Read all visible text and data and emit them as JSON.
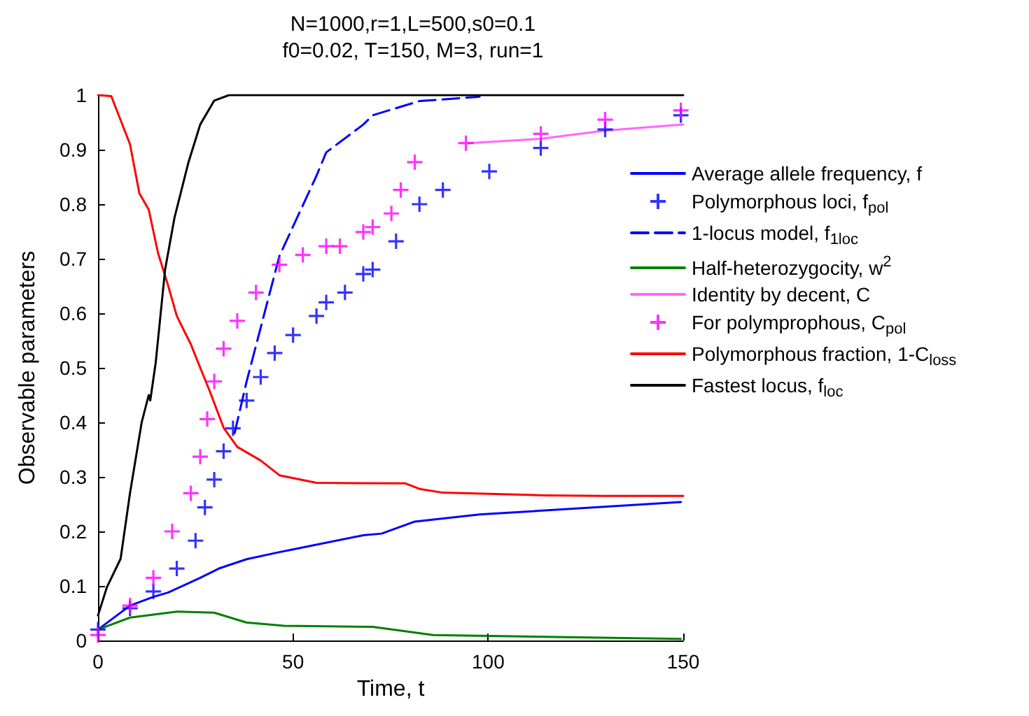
{
  "chart_data": {
    "type": "line",
    "title": "N=1000,r=1,L=500,s0=0.1",
    "subtitle": "f0=0.02, T=150, M=3, run=1",
    "xlabel": "Time, t",
    "ylabel": "Observable parameters",
    "xlim": [
      0,
      150
    ],
    "xticks": [
      0,
      50,
      100,
      150
    ],
    "ylim": [
      0,
      1
    ],
    "yticks": [
      0,
      0.1,
      0.2,
      0.3,
      0.4,
      0.5,
      0.6,
      0.7,
      0.8,
      0.9,
      1
    ],
    "grid": false,
    "legend": "right",
    "series": [
      {
        "name": "Average allele frequency, f",
        "color": "#0000ff",
        "x": [
          0,
          8.2,
          14.2,
          18,
          26.2,
          31,
          38.1,
          46.5,
          50,
          68,
          72.7,
          81.2,
          97.8,
          149.4
        ],
        "values": [
          0.02,
          0.064,
          0.08,
          0.088,
          0.115,
          0.132,
          0.149,
          0.162,
          0.167,
          0.193,
          0.196,
          0.218,
          0.231,
          0.254
        ]
      },
      {
        "name": "Polymorphous loci, f$_{pol}$",
        "type": "scatter",
        "marker": "cross",
        "color": "#0000ff",
        "x": [
          0,
          8.2,
          14.2,
          20.2,
          25,
          27.4,
          29.8,
          32.2,
          34.6,
          38.1,
          41.7,
          45.3,
          50,
          56,
          58.5,
          63.3,
          68,
          70.4,
          76.4,
          82.4,
          88.4,
          100.3,
          113.5,
          130,
          149.4
        ],
        "values": [
          0.02,
          0.059,
          0.09,
          0.132,
          0.183,
          0.244,
          0.295,
          0.347,
          0.389,
          0.44,
          0.483,
          0.527,
          0.56,
          0.595,
          0.62,
          0.638,
          0.672,
          0.68,
          0.732,
          0.8,
          0.826,
          0.86,
          0.903,
          0.937,
          0.963
        ]
      },
      {
        "name": "1-locus model, f$_{1loc}$",
        "line_style": "dashed",
        "color": "#0000ff",
        "x": [
          35,
          38.1,
          46.5,
          56,
          58.5,
          68,
          70.4,
          82.4,
          97.8
        ],
        "values": [
          0.38,
          0.475,
          0.705,
          0.852,
          0.895,
          0.946,
          0.963,
          0.989,
          0.997
        ]
      },
      {
        "name": "Half-heterozygocity, w$^{2}$",
        "color": "#008000",
        "x": [
          0,
          8.2,
          20.2,
          29.8,
          38,
          47.7,
          70.4,
          86,
          149.4
        ],
        "values": [
          0.02,
          0.042,
          0.053,
          0.051,
          0.033,
          0.027,
          0.025,
          0.01,
          0.003
        ]
      },
      {
        "name": "Identity by decent, C",
        "color": "#ff66ff",
        "x": [
          95,
          113.5,
          130,
          150
        ],
        "values": [
          0.912,
          0.92,
          0.935,
          0.946
        ]
      },
      {
        "name": "For polymprophous, C$_{pol}$",
        "type": "scatter",
        "marker": "cross",
        "color": "#ff00ff",
        "x": [
          0,
          8.2,
          14.2,
          19,
          23.8,
          26.2,
          28,
          29.8,
          32.2,
          35.7,
          40.5,
          46.5,
          52.5,
          58.5,
          62,
          68,
          70.4,
          75.2,
          77.6,
          81.2,
          94.3,
          113.5,
          130,
          149.4
        ],
        "values": [
          0.01,
          0.064,
          0.115,
          0.2,
          0.27,
          0.337,
          0.406,
          0.475,
          0.535,
          0.586,
          0.638,
          0.689,
          0.707,
          0.723,
          0.723,
          0.749,
          0.758,
          0.783,
          0.826,
          0.877,
          0.912,
          0.929,
          0.955,
          0.972
        ]
      },
      {
        "name": "Polymorphous fraction, 1-C$_{loss}$",
        "color": "#ff0000",
        "x": [
          0,
          3.4,
          8.2,
          10.6,
          13,
          15.4,
          17.8,
          20.2,
          23.8,
          26.2,
          28.6,
          32.2,
          35.7,
          41.7,
          46.5,
          56,
          78.8,
          82.4,
          88.4,
          114.7,
          130,
          150
        ],
        "values": [
          1.0,
          0.998,
          0.91,
          0.82,
          0.79,
          0.71,
          0.655,
          0.595,
          0.543,
          0.5,
          0.458,
          0.39,
          0.355,
          0.33,
          0.303,
          0.289,
          0.288,
          0.278,
          0.271,
          0.266,
          0.265,
          0.265
        ]
      },
      {
        "name": "Fastest locus, f$_{loc}$",
        "color": "#000000",
        "x": [
          0,
          2.3,
          5.8,
          8.2,
          11.2,
          13,
          13.4,
          14.8,
          17.2,
          19.6,
          23.2,
          26.2,
          29.8,
          33.6,
          150
        ],
        "values": [
          0.046,
          0.098,
          0.15,
          0.27,
          0.4,
          0.45,
          0.44,
          0.51,
          0.68,
          0.775,
          0.877,
          0.946,
          0.99,
          1.0,
          1.0
        ]
      }
    ]
  }
}
